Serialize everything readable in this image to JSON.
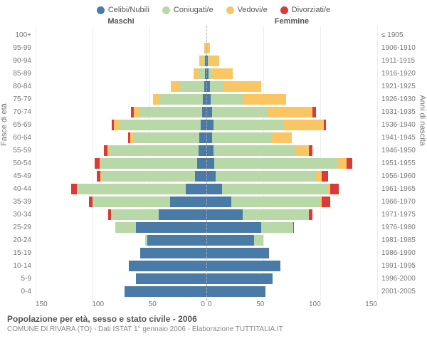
{
  "colors": {
    "single": "#4a7ba6",
    "married": "#b8d8a7",
    "widowed": "#fac664",
    "divorced": "#d93b3b",
    "grid": "#eeeeee",
    "text": "#777777"
  },
  "legend": [
    {
      "key": "single",
      "label": "Celibi/Nubili"
    },
    {
      "key": "married",
      "label": "Coniugati/e"
    },
    {
      "key": "widowed",
      "label": "Vedovi/e"
    },
    {
      "key": "divorced",
      "label": "Divorziati/e"
    }
  ],
  "headers": {
    "male": "Maschi",
    "female": "Femmine"
  },
  "axis_labels": {
    "left": "Fasce di età",
    "right": "Anni di nascita"
  },
  "x_ticks": [
    0,
    50,
    100,
    150
  ],
  "x_max": 150,
  "rows": [
    {
      "age": "100+",
      "birth": "≤ 1905",
      "m": {
        "single": 0,
        "married": 0,
        "widowed": 0,
        "divorced": 0
      },
      "f": {
        "single": 0,
        "married": 0,
        "widowed": 0,
        "divorced": 0
      }
    },
    {
      "age": "95-99",
      "birth": "1906-1910",
      "m": {
        "single": 0,
        "married": 0,
        "widowed": 2,
        "divorced": 0
      },
      "f": {
        "single": 0,
        "married": 0,
        "widowed": 3,
        "divorced": 0
      }
    },
    {
      "age": "90-94",
      "birth": "1911-1915",
      "m": {
        "single": 1,
        "married": 2,
        "widowed": 3,
        "divorced": 0
      },
      "f": {
        "single": 1,
        "married": 1,
        "widowed": 9,
        "divorced": 0
      }
    },
    {
      "age": "85-89",
      "birth": "1916-1920",
      "m": {
        "single": 1,
        "married": 6,
        "widowed": 4,
        "divorced": 0
      },
      "f": {
        "single": 2,
        "married": 3,
        "widowed": 18,
        "divorced": 0
      }
    },
    {
      "age": "80-84",
      "birth": "1921-1925",
      "m": {
        "single": 2,
        "married": 22,
        "widowed": 7,
        "divorced": 0
      },
      "f": {
        "single": 3,
        "married": 12,
        "widowed": 33,
        "divorced": 0
      }
    },
    {
      "age": "75-79",
      "birth": "1926-1930",
      "m": {
        "single": 3,
        "married": 38,
        "widowed": 6,
        "divorced": 0
      },
      "f": {
        "single": 4,
        "married": 28,
        "widowed": 38,
        "divorced": 0
      }
    },
    {
      "age": "70-74",
      "birth": "1931-1935",
      "m": {
        "single": 4,
        "married": 55,
        "widowed": 5,
        "divorced": 2
      },
      "f": {
        "single": 5,
        "married": 48,
        "widowed": 40,
        "divorced": 3
      }
    },
    {
      "age": "65-69",
      "birth": "1936-1940",
      "m": {
        "single": 5,
        "married": 72,
        "widowed": 4,
        "divorced": 2
      },
      "f": {
        "single": 6,
        "married": 62,
        "widowed": 35,
        "divorced": 2
      }
    },
    {
      "age": "60-64",
      "birth": "1941-1945",
      "m": {
        "single": 6,
        "married": 58,
        "widowed": 3,
        "divorced": 2
      },
      "f": {
        "single": 5,
        "married": 52,
        "widowed": 18,
        "divorced": 0
      }
    },
    {
      "age": "55-59",
      "birth": "1946-1950",
      "m": {
        "single": 7,
        "married": 78,
        "widowed": 2,
        "divorced": 3
      },
      "f": {
        "single": 6,
        "married": 72,
        "widowed": 12,
        "divorced": 3
      }
    },
    {
      "age": "50-54",
      "birth": "1951-1955",
      "m": {
        "single": 8,
        "married": 85,
        "widowed": 1,
        "divorced": 4
      },
      "f": {
        "single": 7,
        "married": 108,
        "widowed": 8,
        "divorced": 5
      }
    },
    {
      "age": "45-49",
      "birth": "1956-1960",
      "m": {
        "single": 10,
        "married": 82,
        "widowed": 1,
        "divorced": 3
      },
      "f": {
        "single": 8,
        "married": 88,
        "widowed": 5,
        "divorced": 6
      }
    },
    {
      "age": "40-44",
      "birth": "1961-1965",
      "m": {
        "single": 18,
        "married": 95,
        "widowed": 1,
        "divorced": 5
      },
      "f": {
        "single": 14,
        "married": 92,
        "widowed": 3,
        "divorced": 7
      }
    },
    {
      "age": "35-39",
      "birth": "1966-1970",
      "m": {
        "single": 32,
        "married": 68,
        "widowed": 0,
        "divorced": 3
      },
      "f": {
        "single": 22,
        "married": 78,
        "widowed": 1,
        "divorced": 8
      }
    },
    {
      "age": "30-34",
      "birth": "1971-1975",
      "m": {
        "single": 42,
        "married": 42,
        "widowed": 0,
        "divorced": 2
      },
      "f": {
        "single": 32,
        "married": 58,
        "widowed": 0,
        "divorced": 3
      }
    },
    {
      "age": "25-29",
      "birth": "1976-1980",
      "m": {
        "single": 62,
        "married": 18,
        "widowed": 0,
        "divorced": 0
      },
      "f": {
        "single": 48,
        "married": 28,
        "widowed": 0,
        "divorced": 1
      }
    },
    {
      "age": "20-24",
      "birth": "1981-1985",
      "m": {
        "single": 52,
        "married": 2,
        "widowed": 0,
        "divorced": 0
      },
      "f": {
        "single": 42,
        "married": 8,
        "widowed": 0,
        "divorced": 0
      }
    },
    {
      "age": "15-19",
      "birth": "1986-1990",
      "m": {
        "single": 58,
        "married": 0,
        "widowed": 0,
        "divorced": 0
      },
      "f": {
        "single": 55,
        "married": 0,
        "widowed": 0,
        "divorced": 0
      }
    },
    {
      "age": "10-14",
      "birth": "1991-1995",
      "m": {
        "single": 68,
        "married": 0,
        "widowed": 0,
        "divorced": 0
      },
      "f": {
        "single": 65,
        "married": 0,
        "widowed": 0,
        "divorced": 0
      }
    },
    {
      "age": "5-9",
      "birth": "1996-2000",
      "m": {
        "single": 62,
        "married": 0,
        "widowed": 0,
        "divorced": 0
      },
      "f": {
        "single": 58,
        "married": 0,
        "widowed": 0,
        "divorced": 0
      }
    },
    {
      "age": "0-4",
      "birth": "2001-2005",
      "m": {
        "single": 72,
        "married": 0,
        "widowed": 0,
        "divorced": 0
      },
      "f": {
        "single": 52,
        "married": 0,
        "widowed": 0,
        "divorced": 0
      }
    }
  ],
  "footer": {
    "title": "Popolazione per età, sesso e stato civile - 2006",
    "subtitle": "COMUNE DI RIVARA (TO) - Dati ISTAT 1° gennaio 2006 - Elaborazione TUTTITALIA.IT"
  }
}
